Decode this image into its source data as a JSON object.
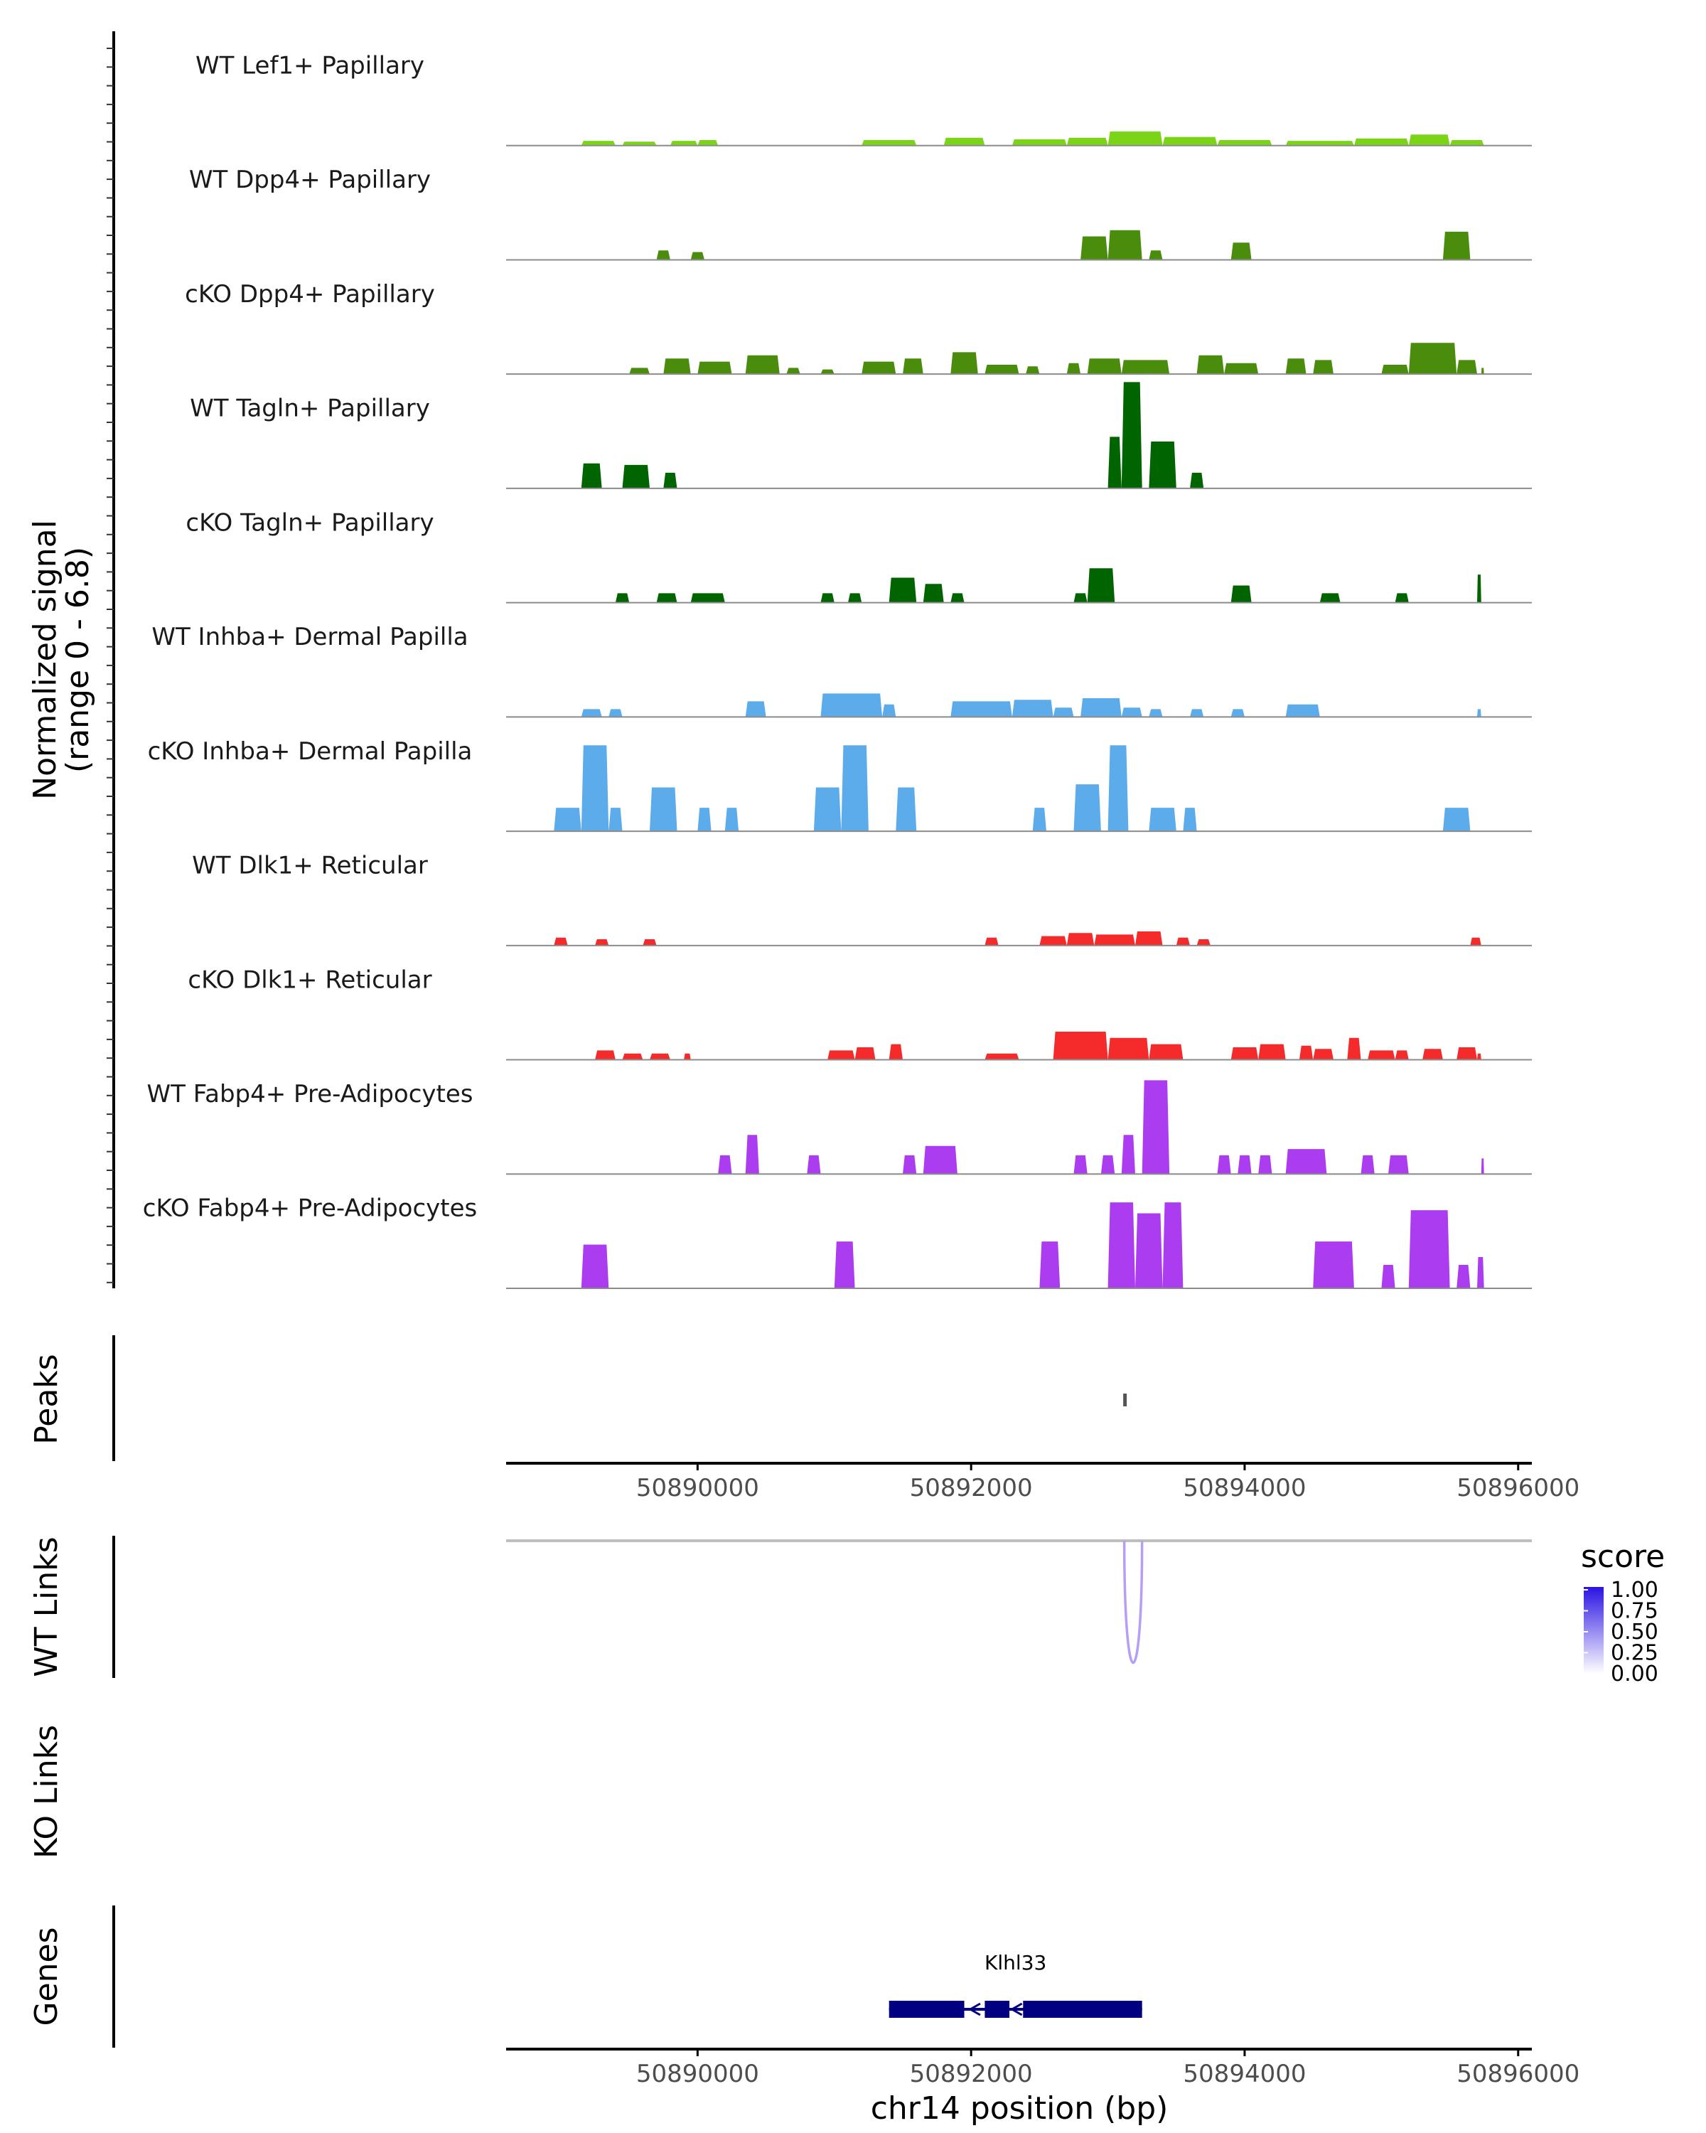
{
  "chart_data": {
    "type": "area",
    "title": "",
    "xlabel": "chr14 position (bp)",
    "x_range": [
      50888600,
      50896100
    ],
    "x_ticks": [
      50890000,
      50892000,
      50894000,
      50896000
    ],
    "x_tick_labels": [
      "50890000",
      "50892000",
      "50894000",
      "50896000"
    ],
    "coverage": {
      "ylabel_line1": "Normalized signal",
      "ylabel_line2": "(range 0 - 6.8)",
      "ylim": [
        0,
        6.8
      ],
      "tracks": [
        {
          "name": "WT Lef1+ Papillary",
          "color": "#7cd419",
          "segments": [
            [
              50889150,
              50889400,
              0.3
            ],
            [
              50889450,
              50889700,
              0.25
            ],
            [
              50889800,
              50890000,
              0.3
            ],
            [
              50890000,
              50890150,
              0.35
            ],
            [
              50891200,
              50891600,
              0.35
            ],
            [
              50891800,
              50892100,
              0.5
            ],
            [
              50892300,
              50892700,
              0.4
            ],
            [
              50892700,
              50893000,
              0.5
            ],
            [
              50893000,
              50893400,
              0.9
            ],
            [
              50893400,
              50893800,
              0.55
            ],
            [
              50893800,
              50894200,
              0.35
            ],
            [
              50894300,
              50894800,
              0.3
            ],
            [
              50894800,
              50895200,
              0.45
            ],
            [
              50895200,
              50895500,
              0.7
            ],
            [
              50895500,
              50895750,
              0.35
            ]
          ]
        },
        {
          "name": "WT Dpp4+ Papillary",
          "color": "#4a8c0c",
          "segments": [
            [
              50889700,
              50889800,
              0.6
            ],
            [
              50889950,
              50890050,
              0.5
            ],
            [
              50892800,
              50893000,
              1.5
            ],
            [
              50893000,
              50893250,
              1.9
            ],
            [
              50893300,
              50893400,
              0.6
            ],
            [
              50893900,
              50894050,
              1.1
            ],
            [
              50895450,
              50895650,
              1.8
            ]
          ]
        },
        {
          "name": "cKO Dpp4+ Papillary",
          "color": "#4a8c0c",
          "segments": [
            [
              50889500,
              50889650,
              0.4
            ],
            [
              50889750,
              50889950,
              1.0
            ],
            [
              50890000,
              50890250,
              0.8
            ],
            [
              50890350,
              50890600,
              1.2
            ],
            [
              50890650,
              50890750,
              0.4
            ],
            [
              50890900,
              50891000,
              0.3
            ],
            [
              50891200,
              50891450,
              0.8
            ],
            [
              50891500,
              50891650,
              1.0
            ],
            [
              50891850,
              50892050,
              1.4
            ],
            [
              50892100,
              50892350,
              0.6
            ],
            [
              50892400,
              50892500,
              0.5
            ],
            [
              50892700,
              50892800,
              0.7
            ],
            [
              50892850,
              50893100,
              1.0
            ],
            [
              50893100,
              50893450,
              0.9
            ],
            [
              50893650,
              50893850,
              1.2
            ],
            [
              50893850,
              50894100,
              0.7
            ],
            [
              50894300,
              50894450,
              1.0
            ],
            [
              50894500,
              50894650,
              0.9
            ],
            [
              50895000,
              50895200,
              0.6
            ],
            [
              50895200,
              50895550,
              2.0
            ],
            [
              50895550,
              50895700,
              0.9
            ],
            [
              50895730,
              50895750,
              0.4
            ]
          ]
        },
        {
          "name": "WT Tagln+ Papillary",
          "color": "#006400",
          "segments": [
            [
              50889150,
              50889300,
              1.6
            ],
            [
              50889450,
              50889650,
              1.5
            ],
            [
              50889750,
              50889850,
              1.0
            ],
            [
              50893000,
              50893100,
              3.3
            ],
            [
              50893100,
              50893250,
              6.8
            ],
            [
              50893300,
              50893500,
              3.0
            ],
            [
              50893600,
              50893700,
              1.0
            ]
          ]
        },
        {
          "name": "cKO Tagln+ Papillary",
          "color": "#006400",
          "segments": [
            [
              50889400,
              50889500,
              0.6
            ],
            [
              50889700,
              50889850,
              0.6
            ],
            [
              50889950,
              50890200,
              0.6
            ],
            [
              50890900,
              50891000,
              0.6
            ],
            [
              50891100,
              50891200,
              0.6
            ],
            [
              50891400,
              50891600,
              1.6
            ],
            [
              50891650,
              50891800,
              1.2
            ],
            [
              50891850,
              50891950,
              0.6
            ],
            [
              50892750,
              50892850,
              0.6
            ],
            [
              50892850,
              50893050,
              2.2
            ],
            [
              50893900,
              50894050,
              1.1
            ],
            [
              50894550,
              50894700,
              0.6
            ],
            [
              50895100,
              50895200,
              0.6
            ],
            [
              50895700,
              50895730,
              1.8
            ]
          ]
        },
        {
          "name": "WT Inhba+ Dermal Papilla",
          "color": "#5cabeb",
          "segments": [
            [
              50889150,
              50889300,
              0.5
            ],
            [
              50889350,
              50889450,
              0.5
            ],
            [
              50890350,
              50890500,
              1.0
            ],
            [
              50890900,
              50891350,
              1.5
            ],
            [
              50891350,
              50891450,
              0.8
            ],
            [
              50891850,
              50892300,
              1.0
            ],
            [
              50892300,
              50892600,
              1.1
            ],
            [
              50892600,
              50892750,
              0.6
            ],
            [
              50892800,
              50893100,
              1.2
            ],
            [
              50893100,
              50893250,
              0.6
            ],
            [
              50893300,
              50893400,
              0.5
            ],
            [
              50893600,
              50893700,
              0.5
            ],
            [
              50893900,
              50894000,
              0.5
            ],
            [
              50894300,
              50894550,
              0.8
            ],
            [
              50895700,
              50895730,
              0.5
            ]
          ]
        },
        {
          "name": "cKO Inhba+ Dermal Papilla",
          "color": "#5cabeb",
          "segments": [
            [
              50888950,
              50889150,
              1.5
            ],
            [
              50889150,
              50889350,
              5.5
            ],
            [
              50889350,
              50889450,
              1.5
            ],
            [
              50889650,
              50889850,
              2.8
            ],
            [
              50890000,
              50890100,
              1.5
            ],
            [
              50890200,
              50890300,
              1.5
            ],
            [
              50890850,
              50891050,
              2.8
            ],
            [
              50891050,
              50891250,
              5.5
            ],
            [
              50891450,
              50891600,
              2.8
            ],
            [
              50892450,
              50892550,
              1.5
            ],
            [
              50892750,
              50892950,
              3.0
            ],
            [
              50893000,
              50893150,
              5.5
            ],
            [
              50893300,
              50893500,
              1.5
            ],
            [
              50893550,
              50893650,
              1.5
            ],
            [
              50895450,
              50895650,
              1.5
            ]
          ]
        },
        {
          "name": "WT Dlk1+ Reticular",
          "color": "#f52a2a",
          "segments": [
            [
              50888950,
              50889050,
              0.5
            ],
            [
              50889250,
              50889350,
              0.4
            ],
            [
              50889600,
              50889700,
              0.4
            ],
            [
              50892100,
              50892200,
              0.5
            ],
            [
              50892500,
              50892700,
              0.6
            ],
            [
              50892700,
              50892900,
              0.8
            ],
            [
              50892900,
              50893200,
              0.7
            ],
            [
              50893200,
              50893400,
              0.9
            ],
            [
              50893500,
              50893600,
              0.5
            ],
            [
              50893650,
              50893750,
              0.4
            ],
            [
              50895650,
              50895730,
              0.5
            ]
          ]
        },
        {
          "name": "cKO Dlk1+ Reticular",
          "color": "#f52a2a",
          "segments": [
            [
              50889250,
              50889400,
              0.6
            ],
            [
              50889450,
              50889600,
              0.4
            ],
            [
              50889650,
              50889800,
              0.4
            ],
            [
              50889900,
              50889950,
              0.4
            ],
            [
              50890950,
              50891150,
              0.6
            ],
            [
              50891150,
              50891300,
              0.8
            ],
            [
              50891400,
              50891500,
              1.0
            ],
            [
              50892100,
              50892350,
              0.4
            ],
            [
              50892600,
              50893000,
              1.8
            ],
            [
              50893000,
              50893300,
              1.4
            ],
            [
              50893300,
              50893550,
              1.0
            ],
            [
              50893900,
              50894100,
              0.8
            ],
            [
              50894100,
              50894300,
              1.0
            ],
            [
              50894400,
              50894500,
              0.9
            ],
            [
              50894500,
              50894650,
              0.7
            ],
            [
              50894750,
              50894850,
              1.4
            ],
            [
              50894900,
              50895100,
              0.6
            ],
            [
              50895100,
              50895200,
              0.6
            ],
            [
              50895300,
              50895450,
              0.7
            ],
            [
              50895550,
              50895700,
              0.8
            ],
            [
              50895700,
              50895730,
              0.4
            ]
          ]
        },
        {
          "name": "WT Fabp4+ Pre-Adipocytes",
          "color": "#ac3cef",
          "segments": [
            [
              50890150,
              50890250,
              1.2
            ],
            [
              50890350,
              50890450,
              2.5
            ],
            [
              50890800,
              50890900,
              1.2
            ],
            [
              50891500,
              50891600,
              1.2
            ],
            [
              50891650,
              50891900,
              1.8
            ],
            [
              50892750,
              50892850,
              1.2
            ],
            [
              50892950,
              50893050,
              1.2
            ],
            [
              50893100,
              50893200,
              2.5
            ],
            [
              50893250,
              50893450,
              6.0
            ],
            [
              50893800,
              50893900,
              1.2
            ],
            [
              50893950,
              50894050,
              1.2
            ],
            [
              50894100,
              50894200,
              1.2
            ],
            [
              50894300,
              50894600,
              1.6
            ],
            [
              50894850,
              50894950,
              1.2
            ],
            [
              50895050,
              50895200,
              1.2
            ],
            [
              50895730,
              50895750,
              1.0
            ]
          ]
        },
        {
          "name": "cKO Fabp4+ Pre-Adipocytes",
          "color": "#ac3cef",
          "segments": [
            [
              50889150,
              50889350,
              2.8
            ],
            [
              50891000,
              50891150,
              3.0
            ],
            [
              50892500,
              50892650,
              3.0
            ],
            [
              50893000,
              50893200,
              5.5
            ],
            [
              50893200,
              50893400,
              4.8
            ],
            [
              50893400,
              50893550,
              5.5
            ],
            [
              50894500,
              50894800,
              3.0
            ],
            [
              50895000,
              50895100,
              1.5
            ],
            [
              50895200,
              50895500,
              5.0
            ],
            [
              50895550,
              50895650,
              1.5
            ],
            [
              50895700,
              50895750,
              2.0
            ]
          ]
        }
      ]
    },
    "peaks": {
      "title": "Peaks",
      "intervals": [
        [
          50893100,
          50893150
        ]
      ]
    },
    "links": {
      "wt_title": "WT Links",
      "ko_title": "KO Links",
      "wt_links": [
        {
          "start": 50893120,
          "end": 50893250,
          "score": 0.35
        }
      ],
      "ko_links": [],
      "legend_title": "score",
      "legend_ticks": [
        "1.00",
        "0.75",
        "0.50",
        "0.25",
        "0.00"
      ],
      "color_low": "#ffffff",
      "color_high": "#2a13e3",
      "link_color": "#b79ef5",
      "baseline_color": "#bebebe"
    },
    "genes": {
      "title": "Genes",
      "color": "#000080",
      "items": [
        {
          "name": "Klhl33",
          "start": 50891400,
          "end": 50893250,
          "exons": [
            [
              50891400,
              50891950
            ],
            [
              50892100,
              50892280
            ],
            [
              50892380,
              50893250
            ]
          ]
        }
      ]
    }
  }
}
